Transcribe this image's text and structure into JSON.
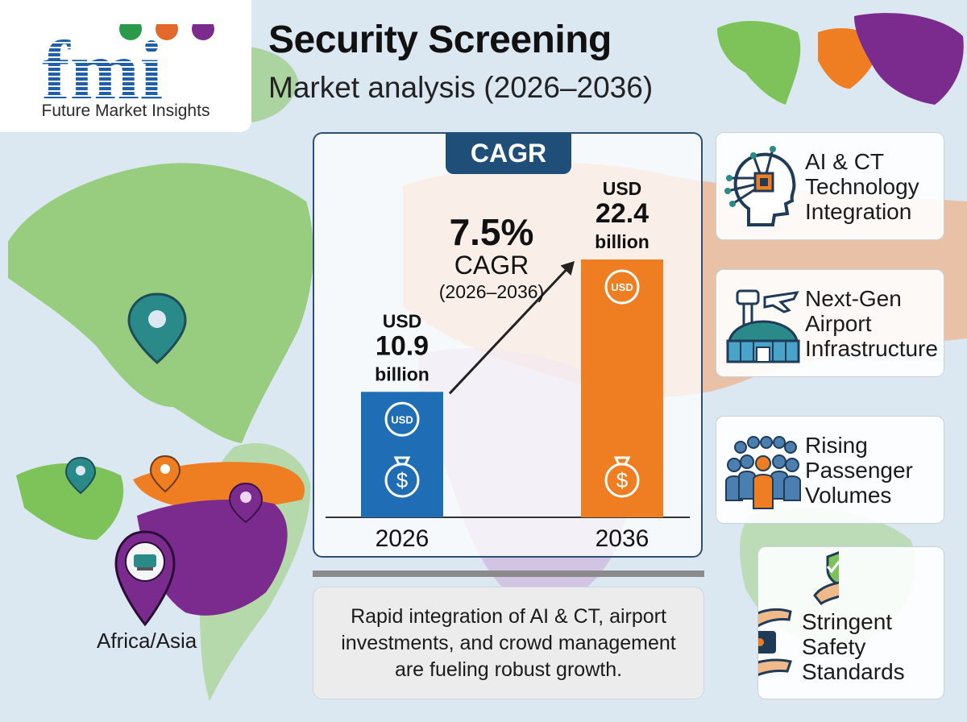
{
  "header": {
    "title": "Security Screening",
    "subtitle": "Market analysis (2026–2036)"
  },
  "logo": {
    "letters": "fmi",
    "company": "Future Market Insights"
  },
  "cagr_tab": "CAGR",
  "chart_data": {
    "type": "bar",
    "categories": [
      "2026",
      "2036"
    ],
    "values": [
      10.9,
      22.4
    ],
    "value_labels": [
      {
        "prefix": "USD",
        "value": "10.9",
        "suffix": "billion"
      },
      {
        "prefix": "USD",
        "value": "22.4",
        "suffix": "billion"
      }
    ],
    "bar_badge": "USD",
    "colors": [
      "#1f6db5",
      "#ef7d22"
    ],
    "annotation": {
      "rate": "7.5%",
      "label": "CAGR",
      "period": "(2026–2036)"
    },
    "ylim": [
      0,
      22.4
    ],
    "grid": false
  },
  "note": "Rapid integration of AI & CT, airport investments, and crowd management are fueling robust growth.",
  "drivers": [
    {
      "icon": "ai-head-chip-icon",
      "label_lines": [
        "AI & CT",
        "Technology",
        "Integration"
      ]
    },
    {
      "icon": "airport-terminal-icon",
      "label_lines": [
        "Next-Gen",
        "Airport",
        "Infrastructure"
      ]
    },
    {
      "icon": "crowd-icon",
      "label_lines": [
        "Rising",
        "Passenger",
        "Volumes"
      ]
    },
    {
      "icon": "shield-handshake-icon",
      "label_lines": [
        "Stringent",
        "Safety",
        "Standards"
      ]
    }
  ],
  "region": {
    "label": "Africa/Asia"
  },
  "colors": {
    "navy": "#1f4e79",
    "blue": "#1f6db5",
    "orange": "#ef7d22",
    "teal": "#2a8a8a",
    "purple": "#7b2a8e",
    "green": "#7ec35a"
  }
}
